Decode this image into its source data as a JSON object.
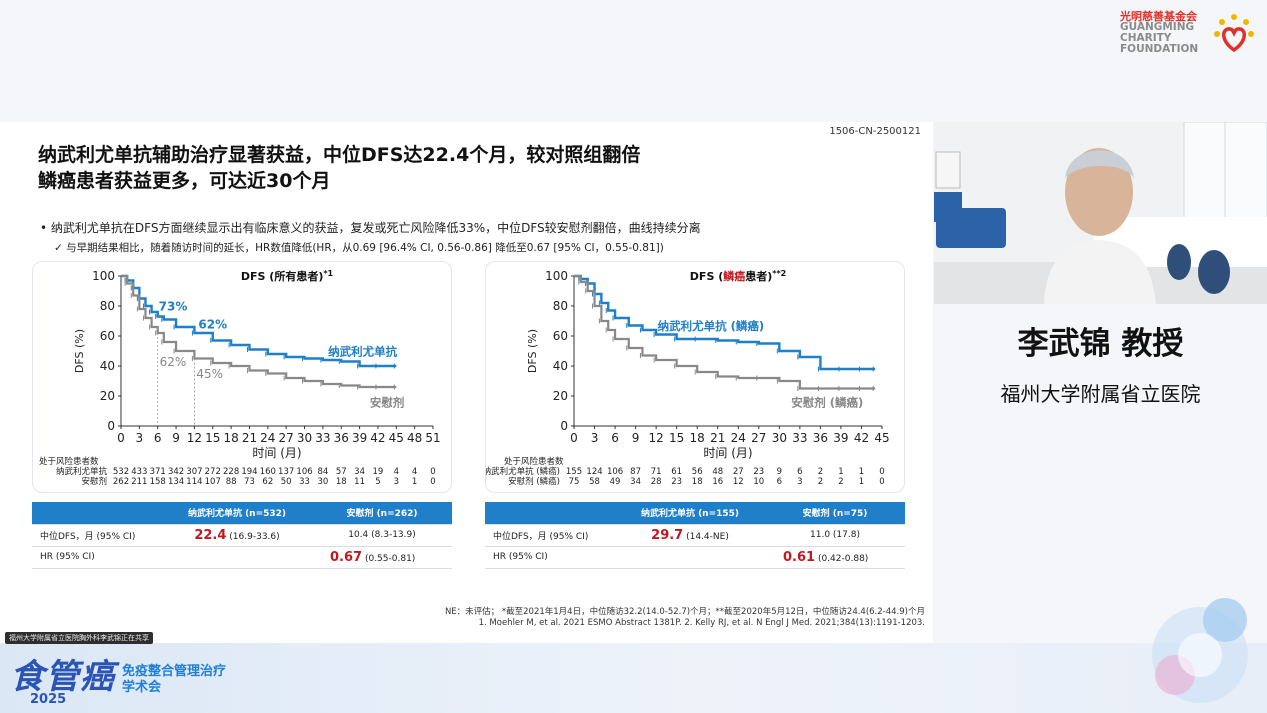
{
  "logo": {
    "cn": "光明慈善基金会",
    "en_lines": [
      "GUANGMING",
      "CHARITY",
      "FOUNDATION"
    ]
  },
  "slide": {
    "id": "1506-CN-2500121",
    "title_lines": [
      "纳武利尤单抗辅助治疗显著获益，中位DFS达22.4个月，较对照组翻倍",
      "鳞癌患者获益更多，可达近30个月"
    ],
    "bullet1": "•  纳武利尤单抗在DFS方面继续显示出有临床意义的获益，复发或死亡风险降低33%，中位DFS较安慰剂翻倍，曲线持续分离",
    "bullet2": "✓  与早期结果相比，随着随访时间的延长，HR数值降低(HR，从0.69 [96.4% CI, 0.56-0.86] 降低至0.67 [95% CI，0.55-0.81])",
    "footnote1": "NE：未评估；  *截至2021年1月4日，中位随访32.2(14.0-52.7)个月；**截至2020年5月12日，中位随访24.4(6.2-44.9)个月",
    "footnote2": "1. Moehler M, et al. 2021 ESMO Abstract 1381P.   2. Kelly RJ, et al. N Engl J Med. 2021;384(13):1191-1203.",
    "table1": {
      "col1": "纳武利尤单抗 (n=532)",
      "col2": "安慰剂 (n=262)",
      "row1_label": "中位DFS，月 (95% CI)",
      "row1_v1_big": "22.4",
      "row1_v1_ci": "(16.9-33.6)",
      "row1_v2": "10.4 (8.3-13.9)",
      "row2_label": "HR (95% CI)",
      "row2_big": "0.67",
      "row2_ci": "(0.55-0.81)"
    },
    "table2": {
      "col1": "纳武利尤单抗 (n=155)",
      "col2": "安慰剂 (n=75)",
      "row1_label": "中位DFS，月 (95% CI)",
      "row1_v1_big": "29.7",
      "row1_v1_ci": "(14.4-NE)",
      "row1_v2": "11.0 (17.8)",
      "row2_label": "HR (95% CI)",
      "row2_big": "0.61",
      "row2_ci": "(0.42-0.88)"
    }
  },
  "chart_data": [
    {
      "type": "line",
      "title": "DFS (所有患者)",
      "title_suffix": "*1",
      "ylabel": "DFS (%)",
      "xlabel": "时间 (月)",
      "ylim": [
        0,
        100
      ],
      "xlim": [
        0,
        51
      ],
      "xticks": [
        0,
        3,
        6,
        9,
        12,
        15,
        18,
        21,
        24,
        27,
        30,
        33,
        36,
        39,
        42,
        45,
        48,
        51
      ],
      "yticks": [
        0,
        20,
        40,
        60,
        80,
        100
      ],
      "series": [
        {
          "name": "纳武利尤单抗",
          "color": "#1f7fc8",
          "x": [
            0,
            1,
            2,
            3,
            4,
            5,
            6,
            7,
            9,
            12,
            15,
            18,
            21,
            24,
            27,
            30,
            33,
            36,
            39,
            42,
            45
          ],
          "y": [
            100,
            97,
            92,
            85,
            80,
            76,
            73,
            71,
            66,
            62,
            57,
            54,
            51,
            48,
            46,
            45,
            44,
            43,
            40,
            40,
            40
          ]
        },
        {
          "name": "安慰剂",
          "color": "#888888",
          "x": [
            0,
            1,
            2,
            3,
            4,
            5,
            6,
            7,
            9,
            12,
            15,
            18,
            21,
            24,
            27,
            30,
            33,
            36,
            39,
            42,
            45
          ],
          "y": [
            100,
            95,
            87,
            78,
            72,
            66,
            62,
            56,
            50,
            45,
            42,
            40,
            37,
            35,
            32,
            30,
            28,
            27,
            26,
            26,
            26
          ]
        }
      ],
      "annotations": [
        {
          "text": "73%",
          "color": "#1f7fc8"
        },
        {
          "text": "62%",
          "color": "#1f7fc8"
        },
        {
          "text": "62%",
          "color": "#888888"
        },
        {
          "text": "45%",
          "color": "#888888"
        }
      ],
      "risk_table": {
        "header": "处于风险患者数",
        "rows": [
          {
            "label": "纳武利尤单抗",
            "values": [
              532,
              433,
              371,
              342,
              307,
              272,
              228,
              194,
              160,
              137,
              106,
              84,
              57,
              34,
              19,
              4,
              4,
              0
            ]
          },
          {
            "label": "安慰剂",
            "values": [
              262,
              211,
              158,
              134,
              114,
              107,
              88,
              73,
              62,
              50,
              33,
              30,
              18,
              11,
              5,
              3,
              1,
              0
            ]
          }
        ]
      }
    },
    {
      "type": "line",
      "title_pre": "DFS (",
      "title_red": "鳞癌",
      "title_post": "患者)",
      "title_suffix": "**2",
      "ylabel": "DFS (%)",
      "xlabel": "时间 (月)",
      "ylim": [
        0,
        100
      ],
      "xlim": [
        0,
        45
      ],
      "xticks": [
        0,
        3,
        6,
        9,
        12,
        15,
        18,
        21,
        24,
        27,
        30,
        33,
        36,
        39,
        42,
        45
      ],
      "yticks": [
        0,
        20,
        40,
        60,
        80,
        100
      ],
      "series": [
        {
          "name": "纳武利尤单抗 (鳞癌)",
          "color": "#1f7fc8",
          "x": [
            0,
            1,
            2,
            3,
            4,
            5,
            6,
            8,
            10,
            12,
            15,
            18,
            21,
            24,
            27,
            30,
            33,
            36,
            39,
            42,
            44
          ],
          "y": [
            100,
            98,
            95,
            88,
            82,
            77,
            72,
            67,
            64,
            61,
            58,
            58,
            57,
            56,
            55,
            50,
            46,
            38,
            38,
            38,
            38
          ]
        },
        {
          "name": "安慰剂 (鳞癌)",
          "color": "#888888",
          "x": [
            0,
            1,
            2,
            3,
            4,
            5,
            6,
            8,
            10,
            12,
            15,
            18,
            21,
            24,
            27,
            30,
            33,
            36,
            39,
            42,
            44
          ],
          "y": [
            100,
            96,
            90,
            80,
            70,
            64,
            58,
            52,
            47,
            44,
            40,
            36,
            33,
            32,
            32,
            30,
            25,
            25,
            25,
            25,
            25
          ]
        }
      ],
      "risk_table": {
        "header": "处于风险患者数",
        "rows": [
          {
            "label": "纳武利尤单抗 (鳞癌)",
            "values": [
              155,
              124,
              106,
              87,
              71,
              61,
              56,
              48,
              27,
              23,
              9,
              6,
              2,
              1,
              1,
              0
            ]
          },
          {
            "label": "安慰剂 (鳞癌)",
            "values": [
              75,
              58,
              49,
              34,
              28,
              23,
              18,
              16,
              12,
              10,
              6,
              3,
              2,
              2,
              1,
              0
            ]
          }
        ]
      }
    }
  ],
  "presenter": {
    "name": "李武锦 教授",
    "hospital": "福州大学附属省立医院"
  },
  "banner": {
    "ticker": "福州大学附属省立医院胸外科李武锦正在共享",
    "event_main": "食管癌",
    "event_sub1": "免疫整合管理治疗",
    "event_sub2": "学术会",
    "event_year": "2025"
  }
}
